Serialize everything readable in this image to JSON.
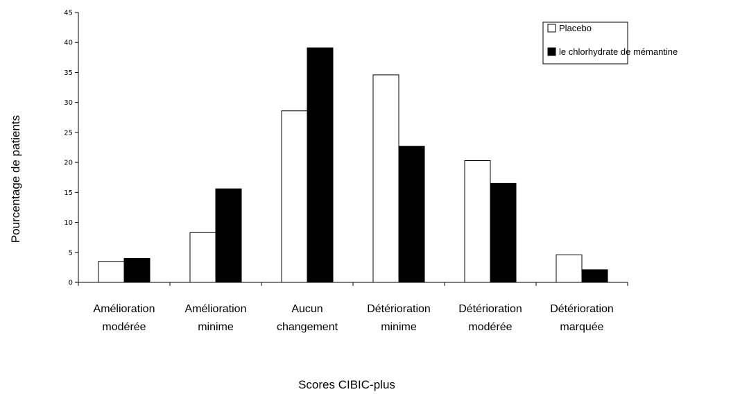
{
  "chart_data": {
    "type": "bar",
    "title": "",
    "xlabel": "Scores CIBIC-plus",
    "ylabel": "Pourcentage de patients",
    "ylim": [
      0,
      45
    ],
    "yticks": [
      0,
      5,
      10,
      15,
      20,
      25,
      30,
      35,
      40,
      45
    ],
    "grid": false,
    "legend_position": "top-right",
    "categories": [
      [
        "Amélioration",
        "modérée"
      ],
      [
        "Amélioration",
        "minime"
      ],
      [
        "Aucun",
        "changement"
      ],
      [
        "Détérioration",
        "minime"
      ],
      [
        "Détérioration",
        "modérée"
      ],
      [
        "Détérioration",
        "marquée"
      ]
    ],
    "series": [
      {
        "name": "Placebo",
        "color": "#ffffff",
        "values": [
          3.5,
          8.3,
          28.6,
          34.6,
          20.3,
          4.6
        ]
      },
      {
        "name": "le chlorhydrate de mémantine",
        "color": "#000000",
        "values": [
          4.0,
          15.6,
          39.1,
          22.7,
          16.5,
          2.1
        ]
      }
    ]
  }
}
